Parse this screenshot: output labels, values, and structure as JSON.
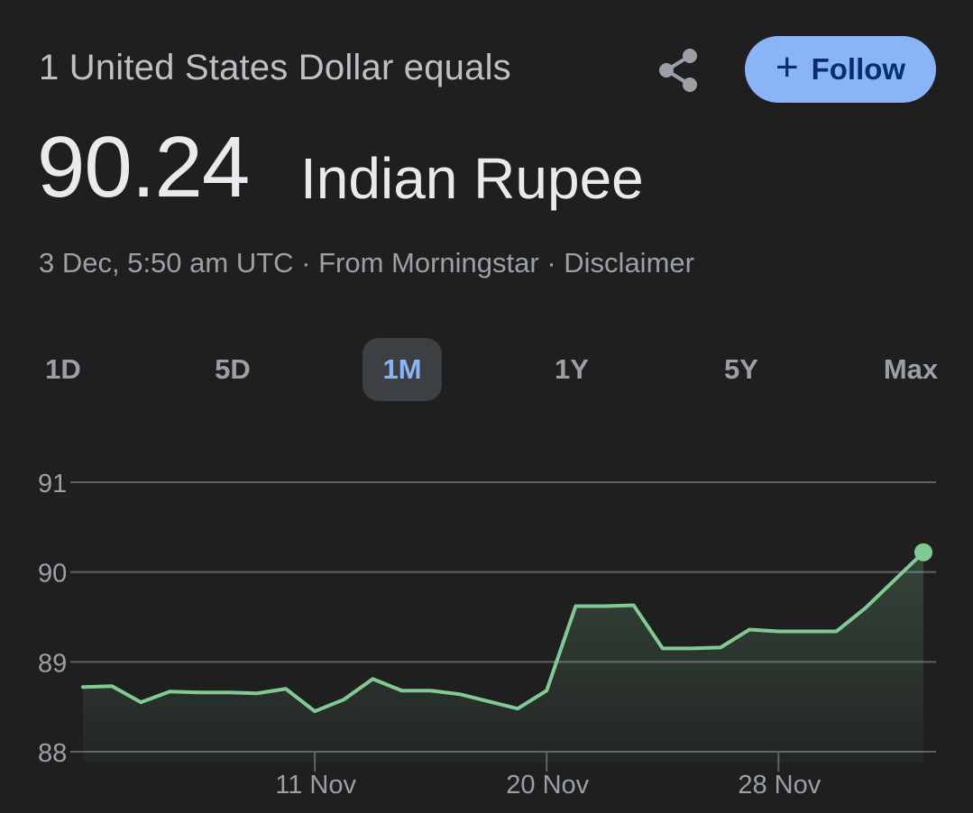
{
  "header": {
    "equals_label": "1 United States Dollar equals",
    "follow_label": "Follow",
    "follow_icon": "plus-icon",
    "share_icon": "share-icon"
  },
  "quote": {
    "value": "90.24",
    "currency": "Indian Rupee"
  },
  "meta": {
    "timestamp": "3 Dec, 5:50 am UTC",
    "separator": " · ",
    "source": "From Morningstar",
    "disclaimer": "Disclaimer"
  },
  "ranges": {
    "tabs": [
      "1D",
      "5D",
      "1M",
      "1Y",
      "5Y",
      "Max"
    ],
    "active": "1M"
  },
  "colors": {
    "background": "#1f1f1f",
    "accent": "#8ab4f8",
    "line": "#81c995",
    "grid": "#5f6368"
  },
  "chart_data": {
    "type": "area",
    "ylim": [
      88,
      91
    ],
    "yticks": [
      91,
      90,
      89,
      88
    ],
    "xticks": [
      "11 Nov",
      "20 Nov",
      "28 Nov"
    ],
    "xtick_index": [
      8,
      16,
      24
    ],
    "grid": true,
    "series": [
      {
        "values": [
          88.72,
          88.73,
          88.55,
          88.67,
          88.66,
          88.66,
          88.65,
          88.7,
          88.45,
          88.58,
          88.81,
          88.68,
          88.68,
          88.64,
          88.56,
          88.48,
          88.68,
          89.62,
          89.62,
          89.63,
          89.15,
          89.15,
          89.16,
          89.36,
          89.34,
          89.34,
          89.34,
          89.6,
          89.91,
          90.22
        ]
      }
    ]
  }
}
